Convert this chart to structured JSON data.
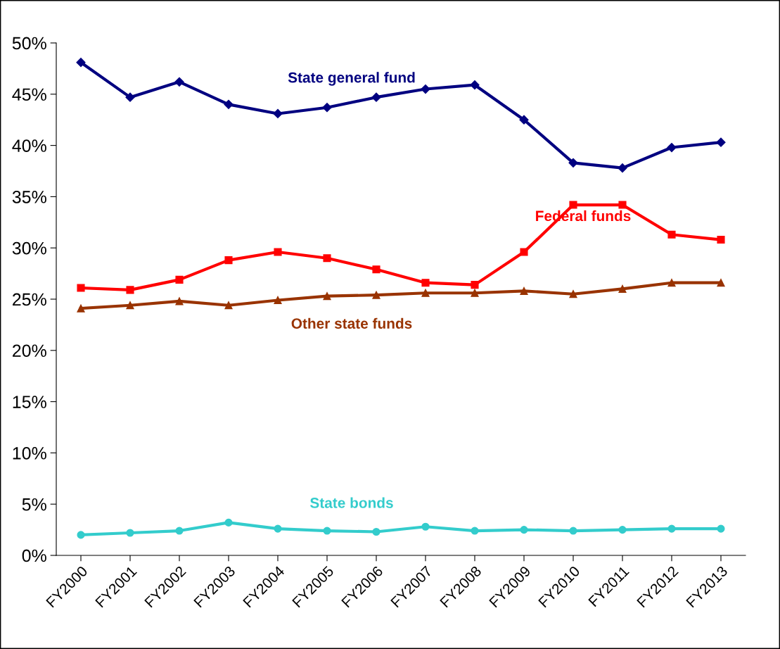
{
  "chart_data": {
    "type": "line",
    "categories": [
      "FY2000",
      "FY2001",
      "FY2002",
      "FY2003",
      "FY2004",
      "FY2005",
      "FY2006",
      "FY2007",
      "FY2008",
      "FY2009",
      "FY2010",
      "FY2011",
      "FY2012",
      "FY2013"
    ],
    "series": [
      {
        "name": "State general fund",
        "color": "#000080",
        "marker": "diamond",
        "values": [
          48.1,
          44.7,
          46.2,
          44.0,
          43.1,
          43.7,
          44.7,
          45.5,
          45.9,
          42.5,
          38.3,
          37.8,
          39.8,
          40.3
        ]
      },
      {
        "name": "Federal funds",
        "color": "#ff0000",
        "marker": "square",
        "values": [
          26.1,
          25.9,
          26.9,
          28.8,
          29.6,
          29.0,
          27.9,
          26.6,
          26.4,
          29.6,
          34.2,
          34.2,
          31.3,
          30.8
        ]
      },
      {
        "name": "Other state funds",
        "color": "#993300",
        "marker": "triangle",
        "values": [
          24.1,
          24.4,
          24.8,
          24.4,
          24.9,
          25.3,
          25.4,
          25.6,
          25.6,
          25.8,
          25.5,
          26.0,
          26.6,
          26.6
        ]
      },
      {
        "name": "State bonds",
        "color": "#33cccc",
        "marker": "circle",
        "values": [
          2.0,
          2.2,
          2.4,
          3.2,
          2.6,
          2.4,
          2.3,
          2.8,
          2.4,
          2.5,
          2.4,
          2.5,
          2.6,
          2.6
        ]
      }
    ],
    "ylim": [
      0,
      50
    ],
    "yticks": [
      {
        "value": 0,
        "label": "0%"
      },
      {
        "value": 5,
        "label": "5%"
      },
      {
        "value": 10,
        "label": "10%"
      },
      {
        "value": 15,
        "label": "15%"
      },
      {
        "value": 20,
        "label": "20%"
      },
      {
        "value": 25,
        "label": "25%"
      },
      {
        "value": 30,
        "label": "30%"
      },
      {
        "value": 35,
        "label": "35%"
      },
      {
        "value": 40,
        "label": "40%"
      },
      {
        "value": 45,
        "label": "45%"
      },
      {
        "value": 50,
        "label": "50%"
      }
    ],
    "grid": false,
    "legend": false,
    "line_style": "solid"
  }
}
